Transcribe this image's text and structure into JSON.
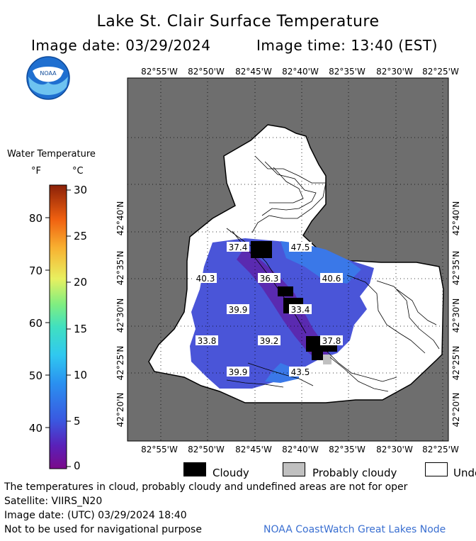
{
  "header": {
    "title": "Lake St. Clair Surface Temperature",
    "image_date": "Image date: 03/29/2024",
    "image_time": "Image time: 13:40 (EST)"
  },
  "logo": {
    "text": "NOAA"
  },
  "colorbar": {
    "title": "Water Temperature",
    "unit_f": "°F",
    "unit_c": "°C",
    "f_ticks": [
      "80",
      "70",
      "60",
      "50",
      "40"
    ],
    "c_ticks": [
      "30",
      "25",
      "20",
      "15",
      "10",
      "5",
      "0"
    ]
  },
  "map": {
    "lon_labels": [
      "82°55'W",
      "82°50'W",
      "82°45'W",
      "82°40'W",
      "82°35'W",
      "82°30'W",
      "82°25'W"
    ],
    "lat_labels": [
      "42°40'N",
      "42°35'N",
      "42°30'N",
      "42°25'N",
      "42°20'N"
    ],
    "temperature_labels": [
      "37.4",
      "47.5",
      "40.3",
      "36.3",
      "40.6",
      "39.9",
      "33.4",
      "33.8",
      "39.2",
      "37.8",
      "39.9",
      "43.5"
    ]
  },
  "legend": {
    "cloudy": "Cloudy",
    "probably_cloudy": "Probably cloudy",
    "undefined": "Unde"
  },
  "footer": {
    "note": "The temperatures in cloud, probably cloudy and undefined areas are not for oper",
    "satellite": "Satellite: VIIRS_N20",
    "utc_date": "Image date: (UTC) 03/29/2024  18:40",
    "nav_warning": "Not to be used for navigational purpose",
    "credit": "NOAA CoastWatch Great Lakes Node"
  },
  "colors": {
    "land": "#6e6e6e",
    "undefined": "#ffffff",
    "cloudy": "#000000",
    "probably_cloudy": "#c0c0c0",
    "water_main": "#4a55d8",
    "water_warm": "#3a78e8",
    "water_cold": "#5a2ab0"
  }
}
